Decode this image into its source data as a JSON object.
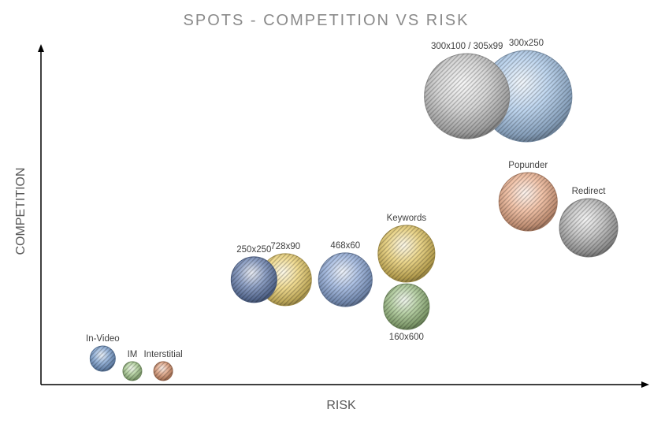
{
  "chart_data": {
    "type": "bubble",
    "title": "SPOTS - COMPETITION VS RISK",
    "xlabel": "RISK",
    "ylabel": "COMPETITION",
    "xlim": [
      0,
      100
    ],
    "ylim": [
      0,
      100
    ],
    "grid": false,
    "legend": "none",
    "points": [
      {
        "label": "300x250",
        "x": 80.2,
        "y": 85.5,
        "size": 336,
        "color": "#a9c8ea",
        "label_pos": "above"
      },
      {
        "label": "300x100 / 305x99",
        "x": 70.4,
        "y": 85.5,
        "size": 292,
        "color": "#c8c8c8",
        "label_pos": "above"
      },
      {
        "label": "Popunder",
        "x": 80.5,
        "y": 54.2,
        "size": 137,
        "color": "#eeb08e",
        "label_pos": "above"
      },
      {
        "label": "Redirect",
        "x": 90.5,
        "y": 46.5,
        "size": 137,
        "color": "#b4b4b4",
        "label_pos": "above"
      },
      {
        "label": "Keywords",
        "x": 60.4,
        "y": 38.8,
        "size": 130,
        "color": "#e3c764",
        "label_pos": "above"
      },
      {
        "label": "160x600",
        "x": 60.4,
        "y": 23.1,
        "size": 84,
        "color": "#9dbf85",
        "label_pos": "below"
      },
      {
        "label": "468x60",
        "x": 50.3,
        "y": 31.1,
        "size": 116,
        "color": "#8faad8",
        "label_pos": "above"
      },
      {
        "label": "728x90",
        "x": 40.4,
        "y": 31.1,
        "size": 109,
        "color": "#ebcf6e",
        "label_pos": "above"
      },
      {
        "label": "250x250",
        "x": 35.2,
        "y": 31.1,
        "size": 84,
        "color": "#6a82b2",
        "label_pos": "above"
      },
      {
        "label": "In-Video",
        "x": 10.2,
        "y": 7.7,
        "size": 25.6,
        "color": "#7a9fcf",
        "label_pos": "above"
      },
      {
        "label": "IM",
        "x": 15.1,
        "y": 4.0,
        "size": 14.4,
        "color": "#a5c98e",
        "label_pos": "above"
      },
      {
        "label": "Interstitial",
        "x": 20.2,
        "y": 4.0,
        "size": 14.4,
        "color": "#d99672",
        "label_pos": "above"
      }
    ]
  }
}
